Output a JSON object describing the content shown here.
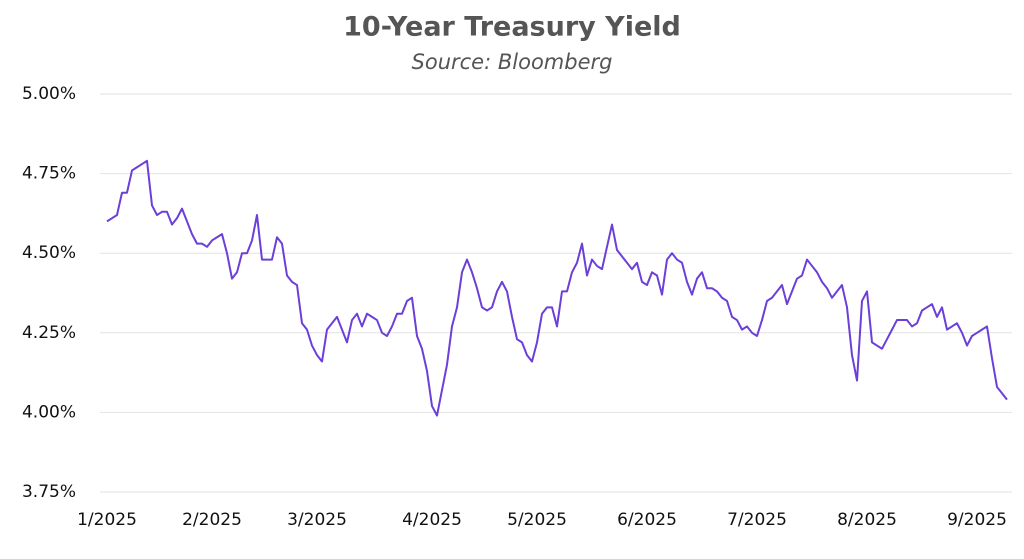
{
  "chart_data": {
    "type": "line",
    "title": "10-Year Treasury Yield",
    "subtitle": "Source: Bloomberg",
    "categories": [
      "1/2025",
      null,
      null,
      null,
      null,
      null,
      null,
      null,
      null,
      null,
      null,
      null,
      null,
      null,
      null,
      null,
      null,
      null,
      null,
      null,
      null,
      "2/2025",
      null,
      null,
      null,
      null,
      null,
      null,
      null,
      null,
      null,
      null,
      null,
      null,
      null,
      null,
      null,
      null,
      null,
      null,
      null,
      null,
      "3/2025",
      null,
      null,
      null,
      null,
      null,
      null,
      null,
      null,
      null,
      null,
      null,
      null,
      null,
      null,
      null,
      null,
      null,
      null,
      null,
      null,
      null,
      null,
      "4/2025",
      null,
      null,
      null,
      null,
      null,
      null,
      null,
      null,
      null,
      null,
      null,
      null,
      null,
      null,
      null,
      null,
      null,
      null,
      null,
      null,
      "5/2025",
      null,
      null,
      null,
      null,
      null,
      null,
      null,
      null,
      null,
      null,
      null,
      null,
      null,
      null,
      null,
      null,
      null,
      null,
      null,
      null,
      null,
      "6/2025",
      null,
      null,
      null,
      null,
      null,
      null,
      null,
      null,
      null,
      null,
      null,
      null,
      null,
      null,
      null,
      null,
      null,
      null,
      null,
      null,
      null,
      "7/2025",
      null,
      null,
      null,
      null,
      null,
      null,
      null,
      null,
      null,
      null,
      null,
      null,
      null,
      null,
      null,
      null,
      null,
      null,
      null,
      null,
      null,
      "8/2025",
      null,
      null,
      null,
      null,
      null,
      null,
      null,
      null,
      null,
      null,
      null,
      null,
      null,
      null,
      null,
      null,
      null,
      null,
      null,
      null,
      null,
      "9/2025",
      null,
      null,
      null,
      null,
      null,
      null
    ],
    "series": [
      {
        "name": "10-Year Treasury Yield",
        "color": "#6b3fd8",
        "values": [
          4.6,
          4.61,
          4.62,
          4.69,
          4.69,
          4.76,
          4.77,
          4.78,
          4.79,
          4.65,
          4.62,
          4.63,
          4.63,
          4.59,
          4.61,
          4.64,
          4.6,
          4.56,
          4.53,
          4.53,
          4.52,
          4.54,
          4.55,
          4.56,
          4.5,
          4.42,
          4.44,
          4.5,
          4.5,
          4.54,
          4.62,
          4.48,
          4.48,
          4.48,
          4.55,
          4.53,
          4.43,
          4.41,
          4.4,
          4.28,
          4.26,
          4.21,
          4.18,
          4.16,
          4.26,
          4.28,
          4.3,
          4.26,
          4.22,
          4.29,
          4.31,
          4.27,
          4.31,
          4.3,
          4.29,
          4.25,
          4.24,
          4.27,
          4.31,
          4.31,
          4.35,
          4.36,
          4.24,
          4.2,
          4.13,
          4.02,
          3.99,
          4.07,
          4.15,
          4.27,
          4.33,
          4.44,
          4.48,
          4.44,
          4.39,
          4.33,
          4.32,
          4.33,
          4.38,
          4.41,
          4.38,
          4.3,
          4.23,
          4.22,
          4.18,
          4.16,
          4.22,
          4.31,
          4.33,
          4.33,
          4.27,
          4.38,
          4.38,
          4.44,
          4.47,
          4.53,
          4.43,
          4.48,
          4.46,
          4.45,
          4.52,
          4.59,
          4.51,
          4.49,
          4.47,
          4.45,
          4.47,
          4.41,
          4.4,
          4.44,
          4.43,
          4.37,
          4.48,
          4.5,
          4.48,
          4.47,
          4.41,
          4.37,
          4.42,
          4.44,
          4.39,
          4.39,
          4.38,
          4.36,
          4.35,
          4.3,
          4.29,
          4.26,
          4.27,
          4.25,
          4.24,
          4.29,
          4.35,
          4.36,
          4.38,
          4.4,
          4.34,
          4.38,
          4.42,
          4.43,
          4.48,
          4.46,
          4.44,
          4.41,
          4.39,
          4.36,
          4.38,
          4.4,
          4.33,
          4.18,
          4.1,
          4.35,
          4.38,
          4.22,
          4.21,
          4.2,
          4.23,
          4.26,
          4.29,
          4.29,
          4.29,
          4.27,
          4.28,
          4.32,
          4.33,
          4.34,
          4.3,
          4.33,
          4.26,
          4.27,
          4.28,
          4.25,
          4.21,
          4.24,
          4.25,
          4.26,
          4.27,
          4.17,
          4.08,
          4.06,
          4.04
        ]
      }
    ],
    "ylim": [
      3.75,
      5.0
    ],
    "yticks": [
      {
        "value": 3.75,
        "label": "3.75%"
      },
      {
        "value": 4.0,
        "label": "4.00%"
      },
      {
        "value": 4.25,
        "label": "4.25%"
      },
      {
        "value": 4.5,
        "label": "4.50%"
      },
      {
        "value": 4.75,
        "label": "4.75%"
      },
      {
        "value": 5.0,
        "label": "5.00%"
      }
    ],
    "grid": true
  }
}
